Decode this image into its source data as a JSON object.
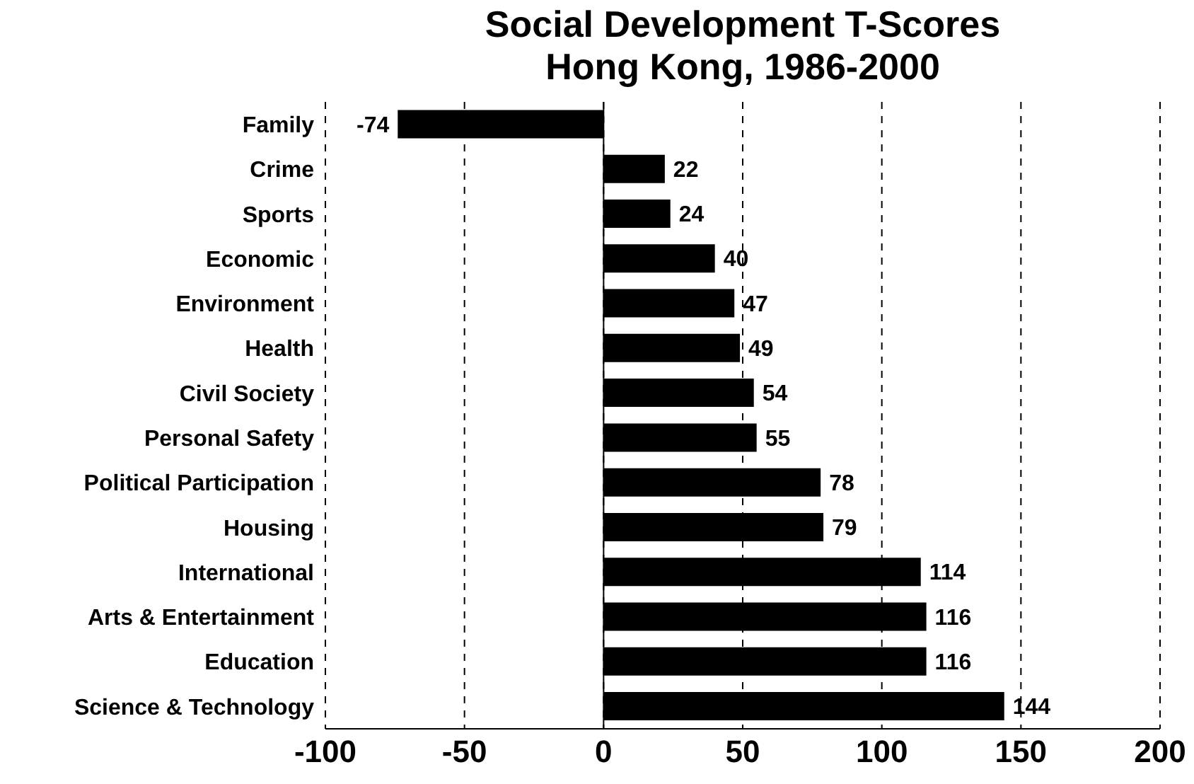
{
  "chart_data": {
    "type": "bar",
    "orientation": "horizontal",
    "title": "Social Development T-Scores",
    "subtitle": "Hong Kong, 1986-2000",
    "categories": [
      "Family",
      "Crime",
      "Sports",
      "Economic",
      "Environment",
      "Health",
      "Civil Society",
      "Personal Safety",
      "Political Participation",
      "Housing",
      "International",
      "Arts & Entertainment",
      "Education",
      "Science & Technology"
    ],
    "values": [
      -74,
      22,
      24,
      40,
      47,
      49,
      54,
      55,
      78,
      79,
      114,
      116,
      116,
      144
    ],
    "color": "#000000",
    "xlim": [
      -100,
      200
    ],
    "xticks": [
      -100,
      -50,
      0,
      50,
      100,
      150,
      200
    ],
    "grid": "x",
    "line_style": "dashed",
    "data_labels": true,
    "ref_lines": [
      {
        "axis": "x",
        "value": 0,
        "color": "#000000",
        "line_style": "solid"
      }
    ]
  }
}
